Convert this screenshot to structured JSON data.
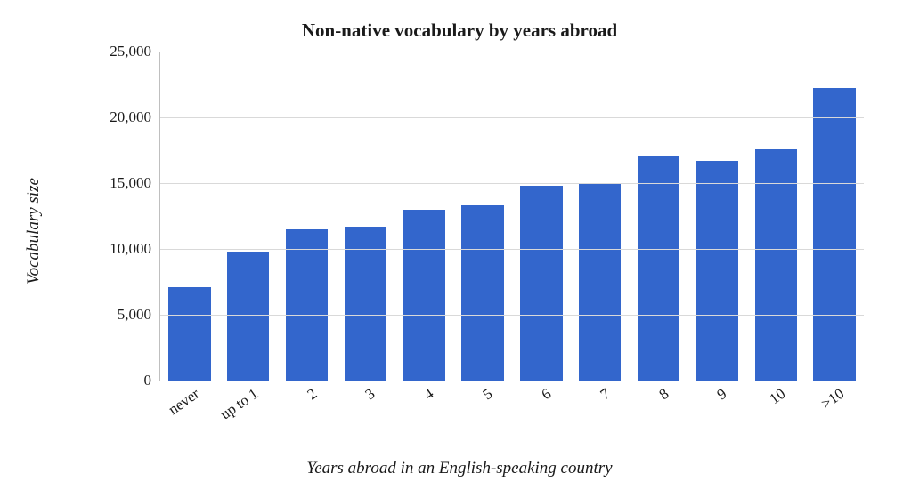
{
  "chart": {
    "type": "bar",
    "title": "Non-native vocabulary by years abroad",
    "title_fontsize": 21,
    "title_fontweight": "bold",
    "ylabel": "Vocabulary size",
    "xlabel": "Years abroad in an English-speaking country",
    "label_fontsize": 19,
    "label_fontstyle": "italic",
    "tick_fontsize": 17,
    "font_family": "Georgia, serif",
    "text_color": "#1a1a1a",
    "background_color": "#ffffff",
    "grid_color": "#d9d9d9",
    "axis_color": "#bfbfbf",
    "ylim": [
      0,
      25000
    ],
    "ytick_step": 5000,
    "yticks": [
      {
        "value": 0,
        "label": "0"
      },
      {
        "value": 5000,
        "label": "5,000"
      },
      {
        "value": 10000,
        "label": "10,000"
      },
      {
        "value": 15000,
        "label": "15,000"
      },
      {
        "value": 20000,
        "label": "20,000"
      },
      {
        "value": 25000,
        "label": "25,000"
      }
    ],
    "bar_color": "#3366cc",
    "bar_width": 0.72,
    "xticks_rotation_deg": -35,
    "categories": [
      "never",
      "up to 1",
      "2",
      "3",
      "4",
      "5",
      "6",
      "7",
      "8",
      "9",
      "10",
      ">10"
    ],
    "values": [
      7100,
      9800,
      11500,
      11700,
      13000,
      13300,
      14800,
      14900,
      17000,
      16700,
      17600,
      22200
    ]
  }
}
